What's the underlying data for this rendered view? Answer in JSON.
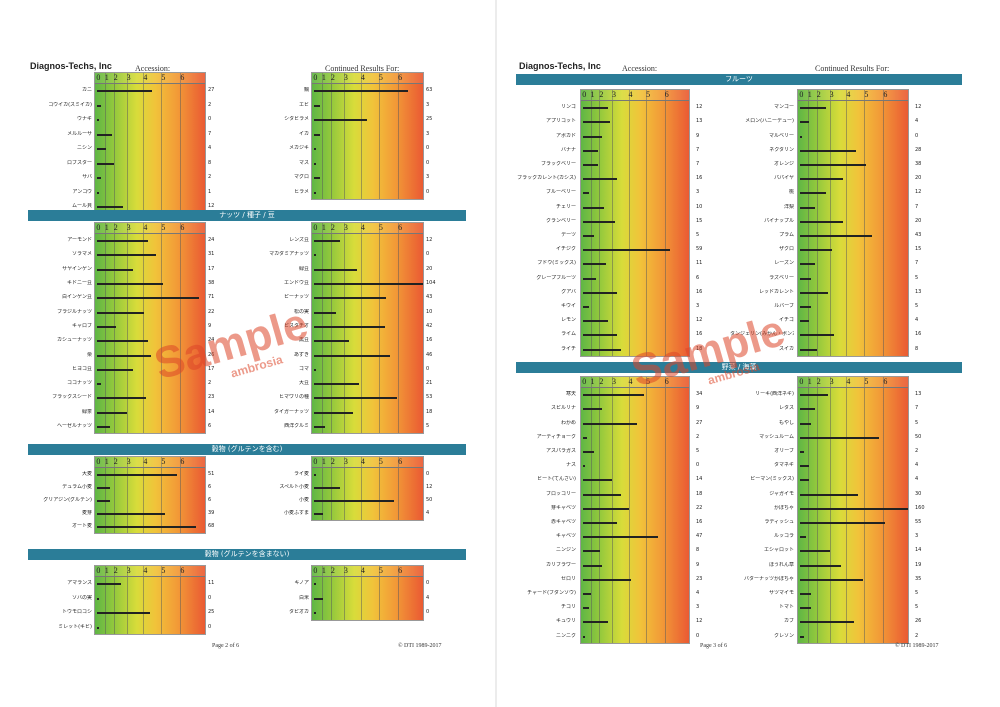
{
  "pages": [
    {
      "company": "Diagnos-Techs, Inc",
      "accession_label": "Accession:",
      "continued_label": "Continued Results For:",
      "footer_page": "Page 2 of 6",
      "footer_copy": "© DTI 1989-2017",
      "watermark": {
        "word": "Sample",
        "sub": "ambrosia"
      },
      "sections": [
        {
          "title": "",
          "left": [
            {
              "label": "カニ",
              "value": 27
            },
            {
              "label": "コウイカ(スミイカ)",
              "value": 2
            },
            {
              "label": "ウナギ",
              "value": 0
            },
            {
              "label": "メルルーサ",
              "value": 7
            },
            {
              "label": "ニシン",
              "value": 4
            },
            {
              "label": "ロブスター",
              "value": 8
            },
            {
              "label": "サバ",
              "value": 2
            },
            {
              "label": "アンコウ",
              "value": 1
            },
            {
              "label": "ムール貝",
              "value": 12
            }
          ],
          "right": [
            {
              "label": "鯛",
              "value": 63
            },
            {
              "label": "エビ",
              "value": 3
            },
            {
              "label": "シタビラメ",
              "value": 25
            },
            {
              "label": "イカ",
              "value": 3
            },
            {
              "label": "メカジキ",
              "value": 0
            },
            {
              "label": "マス",
              "value": 0
            },
            {
              "label": "マグロ",
              "value": 3
            },
            {
              "label": "ヒラメ",
              "value": 0
            }
          ]
        },
        {
          "title": "ナッツ / 種子 / 豆",
          "left": [
            {
              "label": "アーモンド",
              "value": 24
            },
            {
              "label": "ソラマメ",
              "value": 31
            },
            {
              "label": "サヤインゲン",
              "value": 17
            },
            {
              "label": "キドニー豆",
              "value": 38
            },
            {
              "label": "白インゲン豆",
              "value": 71
            },
            {
              "label": "ブラジルナッツ",
              "value": 22
            },
            {
              "label": "キャロブ",
              "value": 9
            },
            {
              "label": "カシューナッツ",
              "value": 24
            },
            {
              "label": "栗",
              "value": 26
            },
            {
              "label": "ヒヨコ豆",
              "value": 17
            },
            {
              "label": "ココナッツ",
              "value": 2
            },
            {
              "label": "フラックスシード",
              "value": 23
            },
            {
              "label": "緑茶",
              "value": 14
            },
            {
              "label": "ヘーゼルナッツ",
              "value": 6
            }
          ],
          "right": [
            {
              "label": "レンズ豆",
              "value": 12
            },
            {
              "label": "マカダミアナッツ",
              "value": 0
            },
            {
              "label": "緑豆",
              "value": 20
            },
            {
              "label": "エンドウ豆",
              "value": 104
            },
            {
              "label": "ピーナッツ",
              "value": 43
            },
            {
              "label": "松の実",
              "value": 10
            },
            {
              "label": "ピスタチオ",
              "value": 42
            },
            {
              "label": "黒豆",
              "value": 16
            },
            {
              "label": "あずき",
              "value": 46
            },
            {
              "label": "ゴマ",
              "value": 0
            },
            {
              "label": "大豆",
              "value": 21
            },
            {
              "label": "ヒマワリの種",
              "value": 53
            },
            {
              "label": "タイガーナッツ",
              "value": 18
            },
            {
              "label": "西洋クルミ",
              "value": 5
            }
          ]
        },
        {
          "title": "穀物 (グルテンを含む)",
          "left": [
            {
              "label": "大麦",
              "value": 51
            },
            {
              "label": "デュラム小麦",
              "value": 6
            },
            {
              "label": "グリアジン(グルテン)",
              "value": 6
            },
            {
              "label": "麦芽",
              "value": 39
            },
            {
              "label": "オート麦",
              "value": 68
            }
          ],
          "right": [
            {
              "label": "ライ麦",
              "value": 0
            },
            {
              "label": "スペルト小麦",
              "value": 12
            },
            {
              "label": "小麦",
              "value": 50
            },
            {
              "label": "小麦ふすま",
              "value": 4
            }
          ]
        },
        {
          "title": "穀物 (グルテンを含まない)",
          "left": [
            {
              "label": "アマランス",
              "value": 11
            },
            {
              "label": "ソバの実",
              "value": 0
            },
            {
              "label": "トウモロコシ",
              "value": 25
            },
            {
              "label": "ミレット(キビ)",
              "value": 0
            }
          ],
          "right": [
            {
              "label": "キノア",
              "value": 0
            },
            {
              "label": "白米",
              "value": 4
            },
            {
              "label": "タピオカ",
              "value": 0
            }
          ]
        }
      ]
    },
    {
      "company": "Diagnos-Techs, Inc",
      "accession_label": "Accession:",
      "continued_label": "Continued Results For:",
      "footer_page": "Page 3 of 6",
      "footer_copy": "© DTI 1989-2017",
      "watermark": {
        "word": "Sample",
        "sub": "ambrosia"
      },
      "sections": [
        {
          "title": "フルーツ",
          "left": [
            {
              "label": "リンゴ",
              "value": 12
            },
            {
              "label": "アプリコット",
              "value": 13
            },
            {
              "label": "アボカド",
              "value": 9
            },
            {
              "label": "バナナ",
              "value": 7
            },
            {
              "label": "ブラックベリー",
              "value": 7
            },
            {
              "label": "ブラックカレント(カシス)",
              "value": 16
            },
            {
              "label": "ブルーベリー",
              "value": 3
            },
            {
              "label": "チェリー",
              "value": 10
            },
            {
              "label": "クランベリー",
              "value": 15
            },
            {
              "label": "デーツ",
              "value": 5
            },
            {
              "label": "イチジク",
              "value": 59
            },
            {
              "label": "ブドウ(ミックス)",
              "value": 11
            },
            {
              "label": "グレープフルーツ",
              "value": 6
            },
            {
              "label": "グアバ",
              "value": 16
            },
            {
              "label": "キウイ",
              "value": 3
            },
            {
              "label": "レモン",
              "value": 12
            },
            {
              "label": "ライム",
              "value": 16
            },
            {
              "label": "ライチ",
              "value": 18
            }
          ],
          "right": [
            {
              "label": "マンゴー",
              "value": 12
            },
            {
              "label": "メロン(ハニーデュー)",
              "value": 4
            },
            {
              "label": "マルベリー",
              "value": 0
            },
            {
              "label": "ネクタリン",
              "value": 28
            },
            {
              "label": "オレンジ",
              "value": 38
            },
            {
              "label": "パパイヤ",
              "value": 20
            },
            {
              "label": "桃",
              "value": 12
            },
            {
              "label": "洋梨",
              "value": 7
            },
            {
              "label": "パイナップル",
              "value": 20
            },
            {
              "label": "プラム",
              "value": 43
            },
            {
              "label": "ザクロ",
              "value": 15
            },
            {
              "label": "レーズン",
              "value": 7
            },
            {
              "label": "ラズベリー",
              "value": 5
            },
            {
              "label": "レッドカレント",
              "value": 13
            },
            {
              "label": "ルバーブ",
              "value": 5
            },
            {
              "label": "イチゴ",
              "value": 4
            },
            {
              "label": "タンジェリン(みかん・ポンカン)",
              "value": 16
            },
            {
              "label": "スイカ",
              "value": 8
            }
          ]
        },
        {
          "title": "野菜 / 海藻",
          "left": [
            {
              "label": "寒天",
              "value": 34
            },
            {
              "label": "スピルリナ",
              "value": 9
            },
            {
              "label": "わかめ",
              "value": 27
            },
            {
              "label": "アーティチョーク",
              "value": 2
            },
            {
              "label": "アスパラガス",
              "value": 5
            },
            {
              "label": "ナス",
              "value": 0
            },
            {
              "label": "ビート(てんさい)",
              "value": 14
            },
            {
              "label": "ブロッコリー",
              "value": 18
            },
            {
              "label": "芽キャベツ",
              "value": 22
            },
            {
              "label": "赤キャベツ",
              "value": 16
            },
            {
              "label": "キャベツ",
              "value": 47
            },
            {
              "label": "ニンジン",
              "value": 8
            },
            {
              "label": "カリフラワー",
              "value": 9
            },
            {
              "label": "セロリ",
              "value": 23
            },
            {
              "label": "チャード(フダンソウ)",
              "value": 4
            },
            {
              "label": "チコリ",
              "value": 3
            },
            {
              "label": "キュウリ",
              "value": 12
            },
            {
              "label": "ニンニク",
              "value": 0
            }
          ],
          "right": [
            {
              "label": "リーキ(西洋ネギ)",
              "value": 13
            },
            {
              "label": "レタス",
              "value": 7
            },
            {
              "label": "もやし",
              "value": 5
            },
            {
              "label": "マッシュルーム",
              "value": 50
            },
            {
              "label": "オリーブ",
              "value": 2
            },
            {
              "label": "タマネギ",
              "value": 4
            },
            {
              "label": "ピーマン(ミックス)",
              "value": 4
            },
            {
              "label": "ジャガイモ",
              "value": 30
            },
            {
              "label": "かぼちゃ",
              "value": 160
            },
            {
              "label": "ラディッシュ",
              "value": 55
            },
            {
              "label": "ルッコラ",
              "value": 3
            },
            {
              "label": "エシャロット",
              "value": 14
            },
            {
              "label": "ほうれん草",
              "value": 19
            },
            {
              "label": "バターナッツかぼちゃ",
              "value": 35
            },
            {
              "label": "サツマイモ",
              "value": 5
            },
            {
              "label": "トマト",
              "value": 5
            },
            {
              "label": "カブ",
              "value": 26
            },
            {
              "label": "クレソン",
              "value": 2
            }
          ]
        }
      ]
    }
  ],
  "scale": {
    "ticks": [
      "0",
      "1",
      "2",
      "3",
      "4",
      "5",
      "6"
    ],
    "tick_values": [
      0,
      8,
      16,
      24,
      40,
      56,
      72
    ],
    "max": 104
  }
}
